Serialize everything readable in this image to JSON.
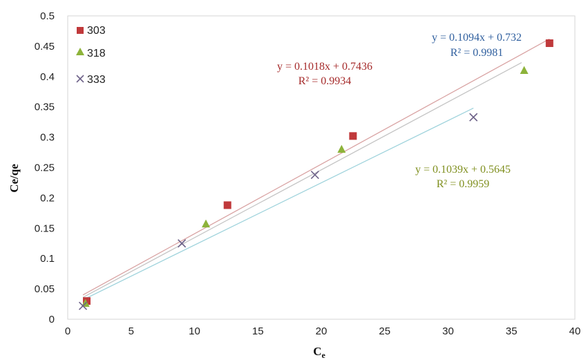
{
  "chart_data": {
    "type": "scatter",
    "xlabel": "C",
    "xlabel_subscript": "e",
    "ylabel": "Ce/qe",
    "xlim": [
      0,
      40
    ],
    "ylim": [
      0,
      0.5
    ],
    "x_ticks": [
      "0",
      "5",
      "10",
      "15",
      "20",
      "25",
      "30",
      "35",
      "40"
    ],
    "y_ticks": [
      "0",
      "0.05",
      "0.1",
      "0.15",
      "0.2",
      "0.25",
      "0.3",
      "0.35",
      "0.4",
      "0.45",
      "0.5"
    ],
    "x_tick_values": [
      0,
      5,
      10,
      15,
      20,
      25,
      30,
      35,
      40
    ],
    "y_tick_values": [
      0,
      0.05,
      0.1,
      0.15,
      0.2,
      0.25,
      0.3,
      0.35,
      0.4,
      0.45,
      0.5
    ],
    "grid": false,
    "legend_position": "top-left",
    "series": [
      {
        "name": "303",
        "marker": "square",
        "color": "#c0393b",
        "trend_color": "#d9a3a3",
        "points": [
          [
            1.5,
            0.03
          ],
          [
            12.6,
            0.188
          ],
          [
            22.5,
            0.302
          ],
          [
            38.0,
            0.455
          ]
        ],
        "trend": [
          [
            1.2,
            0.04
          ],
          [
            38.0,
            0.462
          ]
        ],
        "equation": "y = 0.1018x + 0.7436",
        "r2": "R² = 0.9934",
        "label_color": "#a52a2a"
      },
      {
        "name": "318",
        "marker": "triangle",
        "color": "#8db33a",
        "trend_color": "#c4c4c4",
        "points": [
          [
            1.4,
            0.026
          ],
          [
            10.9,
            0.157
          ],
          [
            21.6,
            0.28
          ],
          [
            36.0,
            0.41
          ]
        ],
        "trend": [
          [
            1.2,
            0.036
          ],
          [
            35.8,
            0.423
          ]
        ],
        "equation": "y = 0.1039x + 0.5645",
        "r2": "R² = 0.9959",
        "label_color": "#7f8f1e"
      },
      {
        "name": "333",
        "marker": "x",
        "color": "#6e6289",
        "trend_color": "#9fd3dc",
        "points": [
          [
            1.2,
            0.022
          ],
          [
            9.0,
            0.125
          ],
          [
            19.5,
            0.238
          ],
          [
            32.0,
            0.333
          ]
        ],
        "trend": [
          [
            1.2,
            0.032
          ],
          [
            32.0,
            0.348
          ]
        ],
        "equation": "y = 0.1094x + 0.732",
        "r2": "R² = 0.9981",
        "label_color": "#2f5f9e"
      }
    ]
  }
}
